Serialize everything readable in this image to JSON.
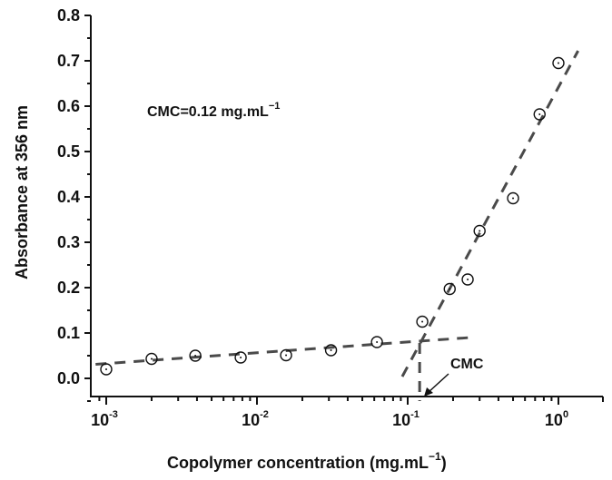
{
  "chart_data": {
    "type": "scatter",
    "title": "",
    "xlabel": "Copolymer concentration (mg.mL⁻¹)",
    "ylabel": "Absorbance at 356 nm",
    "xscale": "log",
    "xlim": [
      0.00085,
      2.3
    ],
    "ylim": [
      -0.05,
      0.8
    ],
    "grid": false,
    "legend": null,
    "x_ticks": [
      {
        "value": 0.001,
        "base": "10",
        "exp": "-3"
      },
      {
        "value": 0.01,
        "base": "10",
        "exp": "-2"
      },
      {
        "value": 0.1,
        "base": "10",
        "exp": "-1"
      },
      {
        "value": 1,
        "base": "10",
        "exp": "0"
      }
    ],
    "y_ticks": [
      0.0,
      0.1,
      0.2,
      0.3,
      0.4,
      0.5,
      0.6,
      0.7,
      0.8
    ],
    "y_tick_labels": [
      "0.0",
      "0.1",
      "0.2",
      "0.3",
      "0.4",
      "0.5",
      "0.6",
      "0.7",
      "0.8"
    ],
    "series": [
      {
        "name": "Absorbance",
        "marker": "circle-dot",
        "x": [
          0.001,
          0.002,
          0.0039,
          0.0078,
          0.0156,
          0.031,
          0.0625,
          0.125,
          0.19,
          0.25,
          0.3,
          0.5,
          0.75,
          1.0
        ],
        "y": [
          0.02,
          0.043,
          0.05,
          0.046,
          0.051,
          0.062,
          0.08,
          0.125,
          0.197,
          0.218,
          0.325,
          0.397,
          0.582,
          0.695
        ]
      }
    ],
    "fit_lines": [
      {
        "name": "pre-CMC linear fit",
        "style": "dashed",
        "x": [
          0.00085,
          0.26
        ],
        "y": [
          0.031,
          0.09
        ]
      },
      {
        "name": "post-CMC linear fit",
        "style": "dashed",
        "x": [
          0.092,
          1.35
        ],
        "y": [
          0.004,
          0.722
        ]
      },
      {
        "name": "CMC drop line",
        "style": "dashed",
        "x": [
          0.12,
          0.12
        ],
        "y": [
          0.078,
          -0.05
        ]
      }
    ],
    "annotations": [
      {
        "text": "CMC=0.12 mg.mL⁻¹",
        "position": "upper-left"
      },
      {
        "text": "CMC",
        "arrow_to_x": 0.12,
        "position": "near x-axis"
      }
    ],
    "cmc_value": 0.12,
    "cmc_unit": "mg.mL⁻¹"
  },
  "labels": {
    "ylabel": "Absorbance at 356 nm",
    "xlabel_main": "Copolymer concentration (mg.mL",
    "xlabel_sup": "−1",
    "xlabel_close": ")",
    "annot_cmc_main": "CMC=0.12 mg.mL",
    "annot_cmc_sup": "−1",
    "cmc_arrow_label": "CMC"
  },
  "colors": {
    "axis": "#111111",
    "fit_line": "#4a4a4a",
    "marker": "#111111",
    "background": "#ffffff"
  }
}
